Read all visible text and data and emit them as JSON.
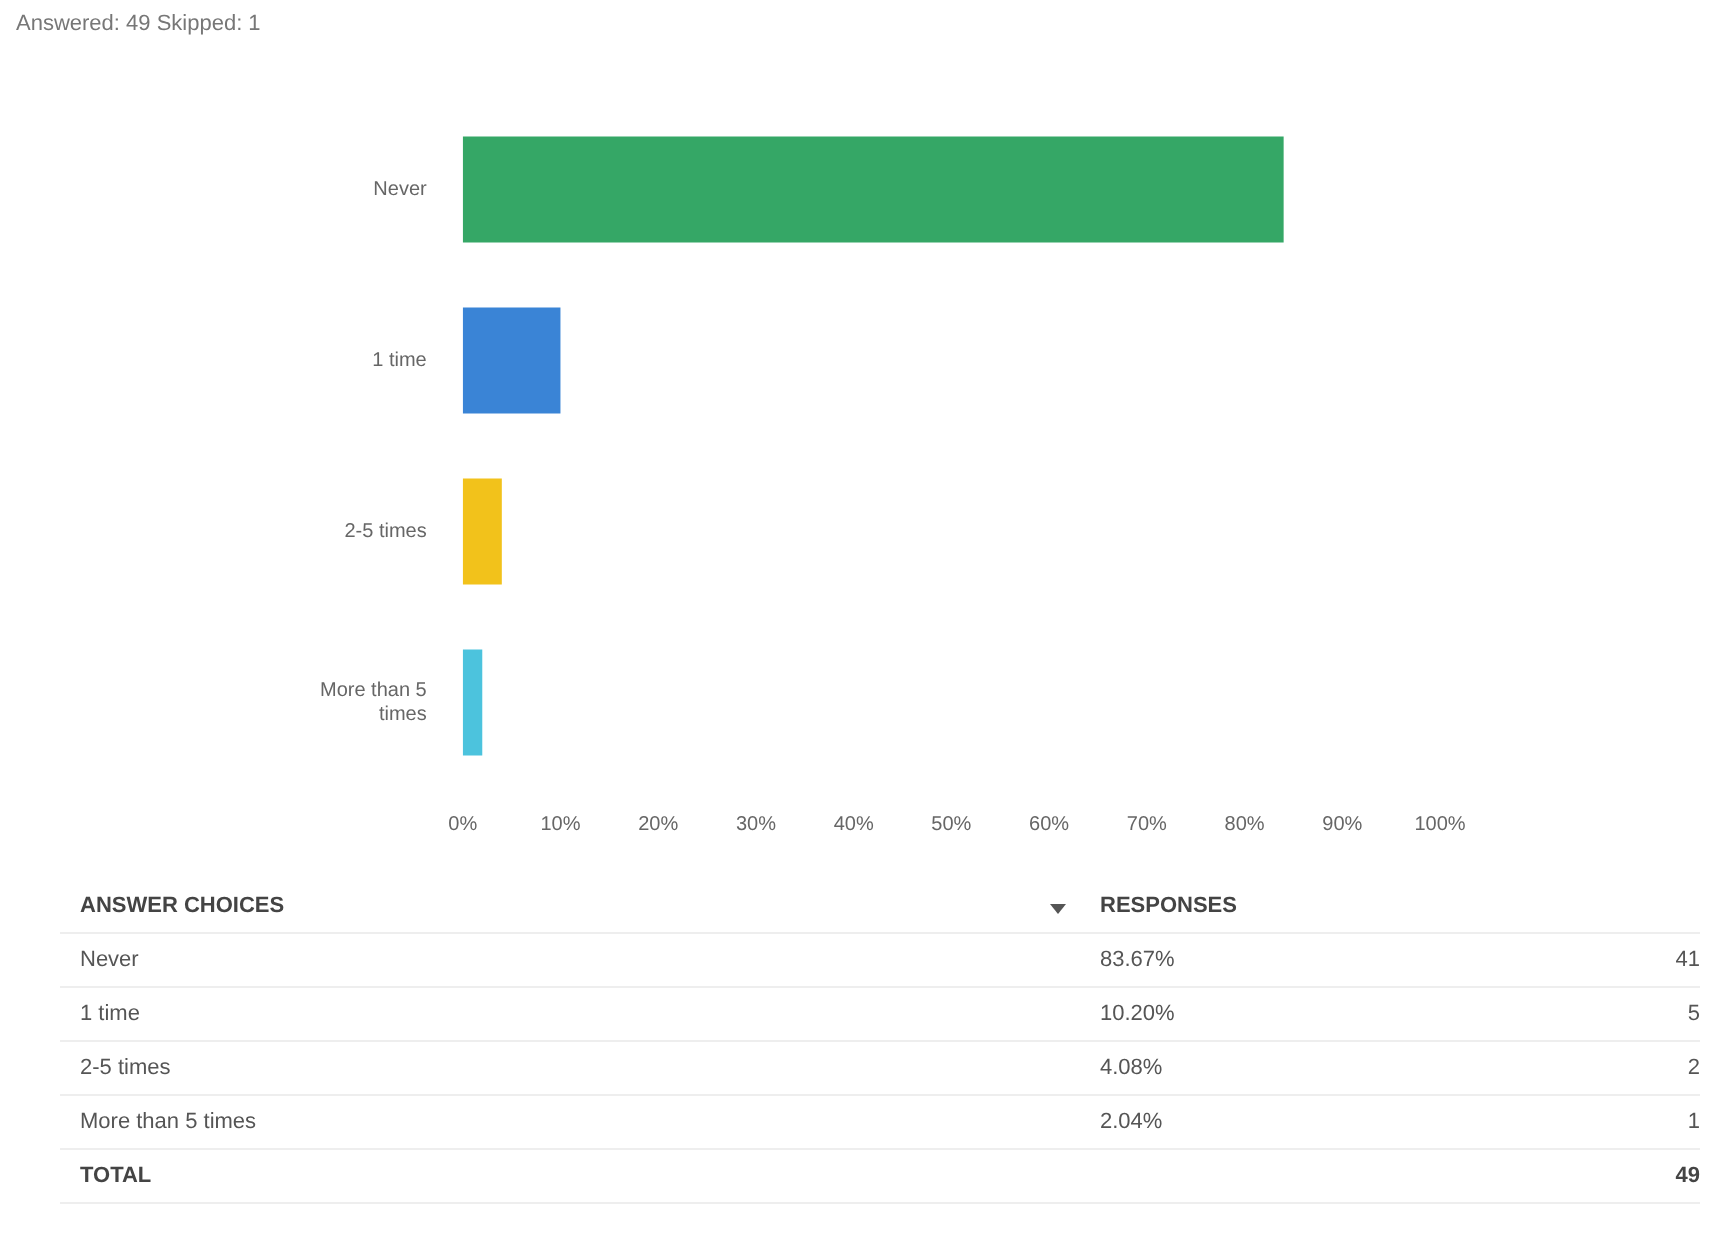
{
  "chart_data": {
    "type": "bar",
    "orientation": "horizontal",
    "subtitle": "Answered: 49    Skipped: 1",
    "categories": [
      "Never",
      "1 time",
      "2-5 times",
      "More than 5 times"
    ],
    "values": [
      84,
      10,
      4,
      2
    ],
    "colors": [
      "#35a766",
      "#3a84d6",
      "#f2c21b",
      "#4cc3dd"
    ],
    "xlim": [
      0,
      100
    ],
    "xticks": [
      {
        "value": 0,
        "label": "0%"
      },
      {
        "value": 10,
        "label": "10%"
      },
      {
        "value": 20,
        "label": "20%"
      },
      {
        "value": 30,
        "label": "30%"
      },
      {
        "value": 40,
        "label": "40%"
      },
      {
        "value": 50,
        "label": "50%"
      },
      {
        "value": 60,
        "label": "60%"
      },
      {
        "value": 70,
        "label": "70%"
      },
      {
        "value": 80,
        "label": "80%"
      },
      {
        "value": 90,
        "label": "90%"
      },
      {
        "value": 100,
        "label": "100%"
      }
    ],
    "grid": false,
    "legend": false,
    "annotations": [
      "ANSWER CHOICES",
      "RESPONSES",
      "TOTAL",
      "49",
      "41",
      "5",
      "2",
      "1",
      "83.67%",
      "10.20%",
      "4.08%",
      "2.04%"
    ]
  }
}
